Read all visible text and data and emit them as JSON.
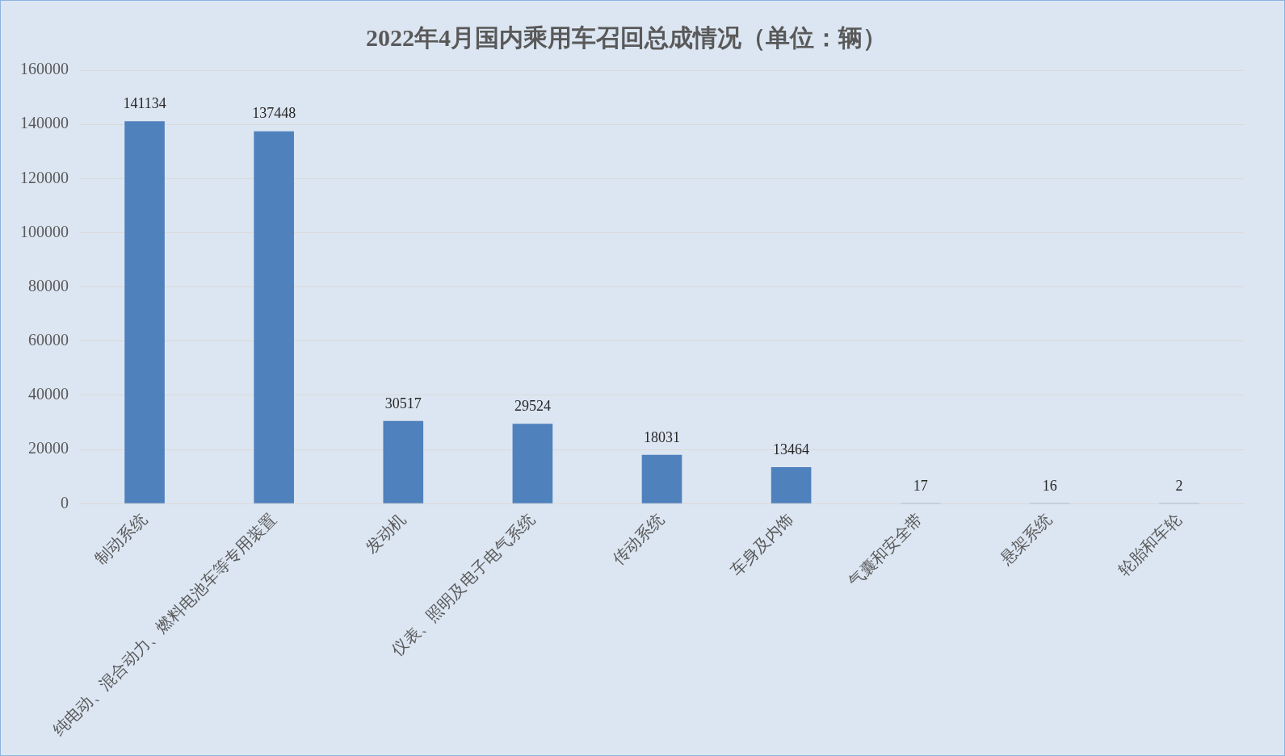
{
  "chart_data": {
    "type": "bar",
    "title": "2022年4月国内乘用车召回总成情况（单位：辆）",
    "categories": [
      "制动系统",
      "纯电动、混合动力、燃料电池车等专用装置",
      "发动机",
      "仪表、照明及电子电气系统",
      "传动系统",
      "车身及内饰",
      "气囊和安全带",
      "悬架系统",
      "轮胎和车轮"
    ],
    "values": [
      141134,
      137448,
      30517,
      29524,
      18031,
      13464,
      17,
      16,
      2
    ],
    "color": "#4f81bd",
    "ylim": [
      0,
      160000
    ],
    "yticks": [
      0,
      20000,
      40000,
      60000,
      80000,
      100000,
      120000,
      140000,
      160000
    ],
    "grid": "y",
    "data_labels": true
  }
}
